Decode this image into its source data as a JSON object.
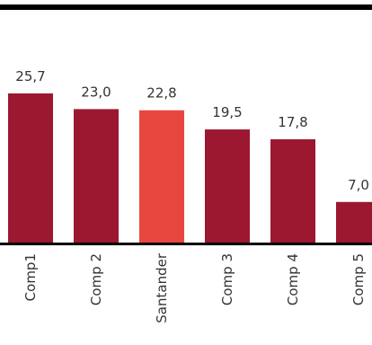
{
  "chart_data": {
    "type": "bar",
    "categories": [
      "Comp1",
      "Comp 2",
      "Santander",
      "Comp 3",
      "Comp 4",
      "Comp 5"
    ],
    "values": [
      25.7,
      23.0,
      22.8,
      19.5,
      17.8,
      7.0
    ],
    "value_labels": [
      "25,7",
      "23,0",
      "22,8",
      "19,5",
      "17,8",
      "7,0"
    ],
    "highlight_index": 2,
    "colors": {
      "bar": "#9b1830",
      "highlight": "#e8473f",
      "rule": "#000000"
    },
    "ylim": [
      0,
      30
    ],
    "grid": false,
    "legend": "none"
  }
}
